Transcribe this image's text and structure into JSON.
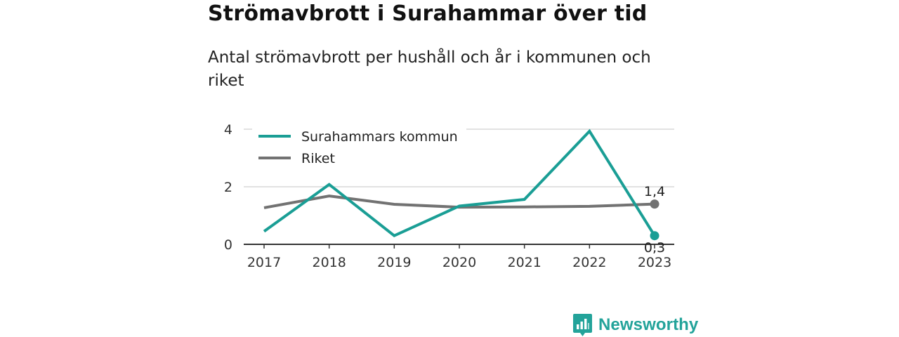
{
  "title": "Strömavbrott i Surahammar över tid",
  "subtitle": "Antal strömavbrott per hushåll och år i kommunen och riket",
  "brand": {
    "name": "Newsworthy",
    "icon": "newsworthy-logo-icon",
    "color": "#23a39a"
  },
  "chart_data": {
    "type": "line",
    "title": "Strömavbrott i Surahammar över tid",
    "subtitle": "Antal strömavbrott per hushåll och år i kommunen och riket",
    "x": [
      "2017",
      "2018",
      "2019",
      "2020",
      "2021",
      "2022",
      "2023"
    ],
    "y_ticks": [
      "0",
      "2",
      "4"
    ],
    "ylim": [
      0,
      4
    ],
    "grid": true,
    "legend_position": "top-left",
    "series": [
      {
        "name": "Surahammars kommun",
        "color": "#1a9e95",
        "values": [
          0.45,
          2.08,
          0.3,
          1.33,
          1.56,
          3.93,
          0.3
        ],
        "end_label": "0,3"
      },
      {
        "name": "Riket",
        "color": "#727272",
        "values": [
          1.27,
          1.68,
          1.39,
          1.29,
          1.3,
          1.32,
          1.4
        ],
        "end_label": "1,4"
      }
    ]
  }
}
